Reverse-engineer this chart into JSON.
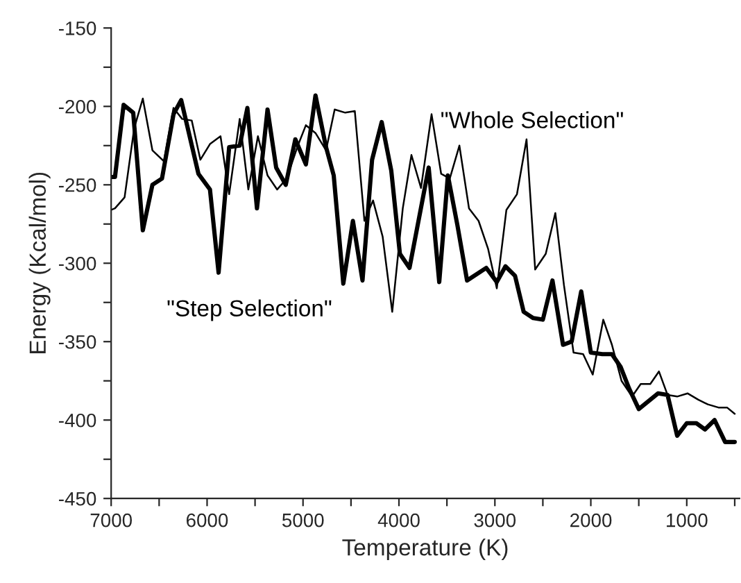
{
  "chart_data": {
    "type": "line",
    "xlabel": "Temperature (K)",
    "ylabel": "Energy (Kcal/mol)",
    "xlim": [
      7000,
      450
    ],
    "ylim": [
      -450,
      -150
    ],
    "xticks": [
      7000,
      {
        "value": 6500,
        "label": null
      },
      6000,
      {
        "value": 5500,
        "label": null
      },
      5000,
      {
        "value": 4500,
        "label": null
      },
      4000,
      {
        "value": 3500,
        "label": null
      },
      3000,
      {
        "value": 2500,
        "label": null
      },
      2000,
      {
        "value": 1500,
        "label": null
      },
      1000,
      {
        "value": 500,
        "label": null
      }
    ],
    "yticks": [
      -450,
      {
        "value": -425,
        "label": null
      },
      -400,
      {
        "value": -375,
        "label": null
      },
      -350,
      {
        "value": -325,
        "label": null
      },
      -300,
      {
        "value": -275,
        "label": null
      },
      -250,
      {
        "value": -225,
        "label": null
      },
      -200,
      {
        "value": -175,
        "label": null
      },
      -150
    ],
    "grid": false,
    "legend": false,
    "marker": "none",
    "line_style": "solid",
    "series": [
      {
        "name": "\"Step Selection\"",
        "color": "#000000",
        "x": [
          7000,
          6960,
          6870,
          6770,
          6670,
          6570,
          6470,
          6350,
          6270,
          6090,
          5970,
          5880,
          5770,
          5660,
          5580,
          5480,
          5370,
          5280,
          5180,
          5080,
          4970,
          4870,
          4760,
          4680,
          4580,
          4480,
          4380,
          4280,
          4180,
          4080,
          3990,
          3890,
          3690,
          3580,
          3490,
          3390,
          3290,
          3090,
          2980,
          2890,
          2790,
          2700,
          2600,
          2500,
          2400,
          2290,
          2200,
          2100,
          2000,
          1880,
          1780,
          1690,
          1600,
          1500,
          1400,
          1300,
          1200,
          1100,
          1000,
          900,
          810,
          710,
          600,
          500
        ],
        "values": [
          -245,
          -245,
          -199,
          -204,
          -279,
          -250,
          -246,
          -205,
          -196,
          -243,
          -253,
          -306,
          -226,
          -225,
          -201,
          -265,
          -202,
          -239,
          -250,
          -221,
          -237,
          -193,
          -226,
          -244,
          -313,
          -273,
          -311,
          -234,
          -210,
          -241,
          -294,
          -303,
          -239,
          -312,
          -244,
          -276,
          -311,
          -303,
          -312,
          -302,
          -308,
          -331,
          -335,
          -336,
          -311,
          -352,
          -350,
          -318,
          -357,
          -358,
          -358,
          -366,
          -380,
          -393,
          -388,
          -383,
          -384,
          -410,
          -402,
          -402,
          -406,
          -400,
          -414,
          -414
        ]
      },
      {
        "name": "\"Whole Selection\"",
        "color": "#000000",
        "x": [
          7000,
          6960,
          6860,
          6760,
          6670,
          6570,
          6450,
          6350,
          6260,
          6160,
          6070,
          5970,
          5860,
          5770,
          5660,
          5570,
          5470,
          5370,
          5270,
          5170,
          5060,
          4970,
          4870,
          4760,
          4670,
          4560,
          4460,
          4360,
          4270,
          4170,
          4070,
          3960,
          3870,
          3770,
          3660,
          3560,
          3470,
          3370,
          3270,
          3170,
          3070,
          2980,
          2880,
          2770,
          2670,
          2580,
          2470,
          2370,
          2280,
          2180,
          2080,
          1980,
          1870,
          1780,
          1680,
          1570,
          1480,
          1380,
          1290,
          1200,
          1100,
          990,
          880,
          780,
          670,
          580,
          500
        ],
        "values": [
          -266,
          -265,
          -258,
          -214,
          -195,
          -228,
          -235,
          -201,
          -208,
          -209,
          -234,
          -224,
          -219,
          -256,
          -208,
          -253,
          -219,
          -244,
          -253,
          -246,
          -226,
          -212,
          -217,
          -228,
          -202,
          -204,
          -203,
          -273,
          -260,
          -283,
          -331,
          -265,
          -231,
          -252,
          -205,
          -243,
          -246,
          -225,
          -265,
          -273,
          -291,
          -316,
          -266,
          -256,
          -221,
          -304,
          -294,
          -268,
          -314,
          -357,
          -358,
          -371,
          -336,
          -352,
          -375,
          -385,
          -377,
          -377,
          -369,
          -384,
          -385,
          -383,
          -387,
          -390,
          -392,
          -392,
          -396
        ]
      }
    ]
  }
}
